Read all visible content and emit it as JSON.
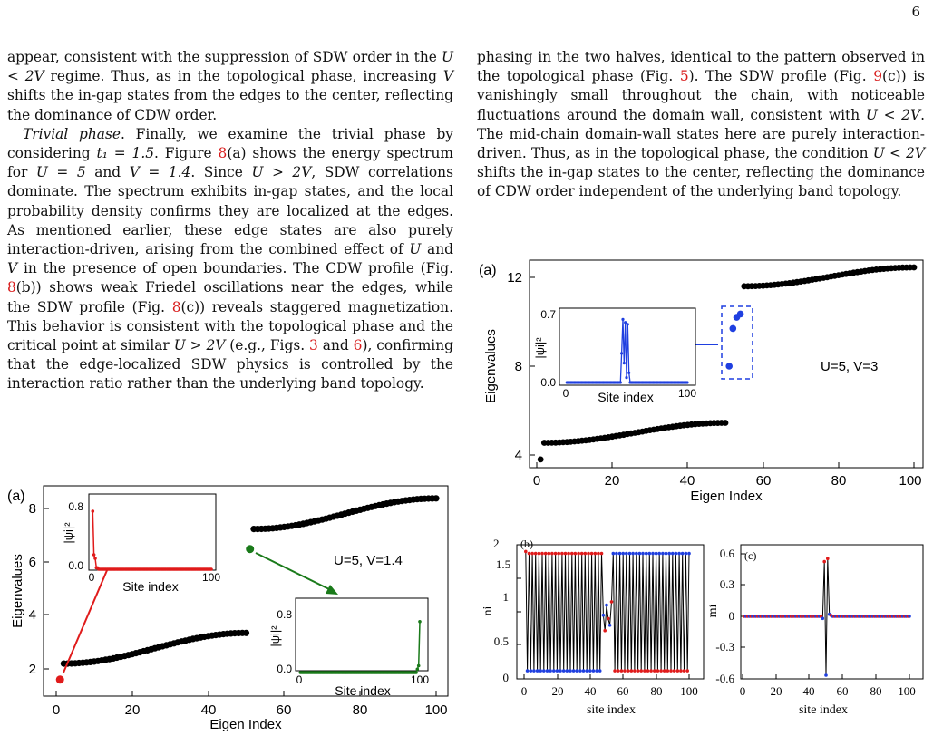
{
  "page_number": "6",
  "left_column": {
    "p1_a": "appear, consistent with the suppression of SDW order in the",
    "p1_b": "regime. Thus, as in the topological phase, increasing",
    "p1_c": "shifts the in-gap states from the edges to the center, reflecting the dominance of CDW order.",
    "p2_heading": "Trivial phase",
    "p2_a": ". Finally, we examine the trivial phase by considering",
    "p2_b": ". Figure",
    "p2_c": "(a) shows the energy spectrum for",
    "p2_d": "and",
    "p2_e": ". Since",
    "p2_f": ", SDW correlations dominate. The spectrum exhibits in-gap states, and the local probability density confirms they are localized at the edges. As mentioned earlier, these edge states are also purely interaction-driven, arising from the combined effect of",
    "p2_g": "and",
    "p2_h": "in the presence of open boundaries. The CDW profile (Fig.",
    "p2_i": "(b)) shows weak Friedel oscillations near the edges, while the SDW profile (Fig.",
    "p2_j": "(c)) reveals staggered magnetization. This behavior is consistent with the topological phase and the critical point at similar",
    "p2_k": "(e.g., Figs.",
    "p2_l": "and",
    "p2_m": "), confirming that the edge-localized SDW physics is controlled by the interaction ratio rather than the underlying band topology.",
    "math_U_lt_2V": "U < 2V",
    "math_V": "V",
    "math_t1": "t₁ = 1.5",
    "math_U5": "U = 5",
    "math_V14": "V = 1.4",
    "math_U_gt_2V": "U > 2V",
    "math_U": "U",
    "ref_8": "8",
    "ref_3": "3",
    "ref_6": "6"
  },
  "right_column": {
    "p1_a": "phasing in the two halves, identical to the pattern observed in the topological phase (Fig.",
    "p1_b": "). The SDW profile (Fig.",
    "p1_c": "(c)) is vanishingly small throughout the chain, with noticeable fluctuations around the domain wall, consistent with",
    "p1_d": ". The mid-chain domain-wall states here are purely interaction-driven. Thus, as in the topological phase, the condition",
    "p1_e": "shifts the in-gap states to the center, reflecting the dominance of CDW order independent of the underlying band topology.",
    "math_U_lt_2V": "U < 2V",
    "ref_5": "5",
    "ref_9": "9"
  },
  "colors": {
    "ref": "#d81b1b",
    "black_points": "#000000",
    "red": "#e01b1b",
    "green": "#1a7a1a",
    "blue": "#1f3fe0"
  },
  "figure8": {
    "panel_label": "(a)",
    "annotation": "U=5, V=1.4",
    "ylabel": "Eigenvalues",
    "xlabel": "Eigen Index",
    "x_ticks": [
      "0",
      "20",
      "40",
      "60",
      "80",
      "100"
    ],
    "y_ticks": [
      "2",
      "4",
      "6",
      "8"
    ],
    "inset_left": {
      "ylabel": "|ψi|²",
      "xlabel": "Site index",
      "y_ticks": [
        "0.0",
        "0.8"
      ],
      "x_ticks": [
        "0",
        "100"
      ]
    },
    "inset_right": {
      "ylabel": "|ψi|²",
      "xlabel": "Site index",
      "y_ticks": [
        "0.0",
        "0.8"
      ],
      "x_ticks": [
        "0",
        "100"
      ]
    }
  },
  "figure9": {
    "panel_a": {
      "panel_label": "(a)",
      "annotation": "U=5, V=3",
      "ylabel": "Eigenvalues",
      "xlabel": "Eigen Index",
      "x_ticks": [
        "0",
        "20",
        "40",
        "60",
        "80",
        "100"
      ],
      "y_ticks": [
        "4",
        "8",
        "12"
      ],
      "inset": {
        "ylabel": "|ψi|²",
        "xlabel": "Site index",
        "y_ticks": [
          "0.0",
          "0.7"
        ],
        "x_ticks": [
          "0",
          "100"
        ]
      }
    },
    "panel_b": {
      "panel_label": "(b)",
      "ylabel": "ni",
      "xlabel": "site index",
      "x_ticks": [
        "0",
        "20",
        "40",
        "60",
        "80",
        "100"
      ],
      "y_ticks": [
        "0",
        "0.5",
        "1",
        "1.5",
        "2"
      ]
    },
    "panel_c": {
      "panel_label": "(c)",
      "ylabel": "mi",
      "xlabel": "site index",
      "x_ticks": [
        "0",
        "20",
        "40",
        "60",
        "80",
        "100"
      ],
      "y_ticks": [
        "-0.6",
        "-0.3",
        "0",
        "0.3",
        "0.6"
      ]
    }
  }
}
